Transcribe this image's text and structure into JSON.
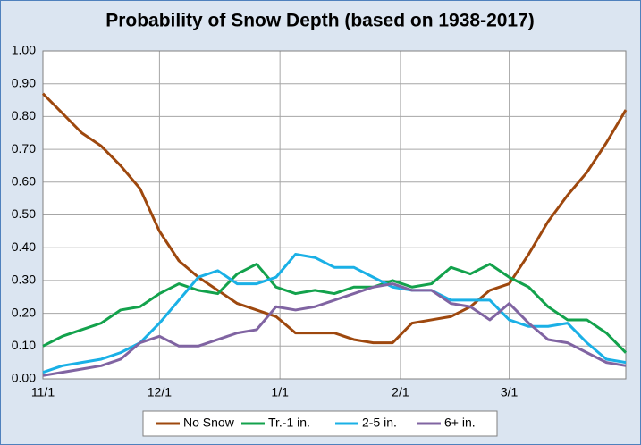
{
  "chart_data": {
    "type": "line",
    "title": "Probability of Snow Depth (based on 1938-2017)",
    "x": [
      0,
      5,
      10,
      15,
      20,
      25,
      30,
      35,
      40,
      45,
      50,
      55,
      60,
      65,
      70,
      75,
      80,
      85,
      90,
      95,
      100,
      105,
      110,
      115,
      120,
      125,
      130,
      135,
      140,
      145,
      150
    ],
    "xlim": [
      0,
      150
    ],
    "xticks": [
      {
        "value": 0,
        "label": "11/1"
      },
      {
        "value": 30,
        "label": "12/1"
      },
      {
        "value": 61,
        "label": "1/1"
      },
      {
        "value": 92,
        "label": "2/1"
      },
      {
        "value": 120,
        "label": "3/1"
      }
    ],
    "ylim": [
      0,
      1
    ],
    "yticks": [
      {
        "value": 0,
        "label": "0.00"
      },
      {
        "value": 0.1,
        "label": "0.10"
      },
      {
        "value": 0.2,
        "label": "0.20"
      },
      {
        "value": 0.3,
        "label": "0.30"
      },
      {
        "value": 0.4,
        "label": "0.40"
      },
      {
        "value": 0.5,
        "label": "0.50"
      },
      {
        "value": 0.6,
        "label": "0.60"
      },
      {
        "value": 0.7,
        "label": "0.70"
      },
      {
        "value": 0.8,
        "label": "0.80"
      },
      {
        "value": 0.9,
        "label": "0.90"
      },
      {
        "value": 1,
        "label": "1.00"
      }
    ],
    "grid": true,
    "legend": "bottom",
    "series": [
      {
        "name": "No Snow",
        "color": "#9e480e",
        "values": [
          0.87,
          0.81,
          0.75,
          0.71,
          0.65,
          0.58,
          0.45,
          0.36,
          0.31,
          0.27,
          0.23,
          0.21,
          0.19,
          0.14,
          0.14,
          0.14,
          0.12,
          0.11,
          0.11,
          0.17,
          0.18,
          0.19,
          0.22,
          0.27,
          0.29,
          0.38,
          0.48,
          0.56,
          0.63,
          0.72,
          0.82
        ]
      },
      {
        "name": "Tr.-1 in.",
        "color": "#13a24c",
        "values": [
          0.1,
          0.13,
          0.15,
          0.17,
          0.21,
          0.22,
          0.26,
          0.29,
          0.27,
          0.26,
          0.32,
          0.35,
          0.28,
          0.26,
          0.27,
          0.26,
          0.28,
          0.28,
          0.3,
          0.28,
          0.29,
          0.34,
          0.32,
          0.35,
          0.31,
          0.28,
          0.22,
          0.18,
          0.18,
          0.14,
          0.08
        ]
      },
      {
        "name": "2-5 in.",
        "color": "#1ab0e6",
        "values": [
          0.02,
          0.04,
          0.05,
          0.06,
          0.08,
          0.11,
          0.17,
          0.24,
          0.31,
          0.33,
          0.29,
          0.29,
          0.31,
          0.38,
          0.37,
          0.34,
          0.34,
          0.31,
          0.28,
          0.27,
          0.27,
          0.24,
          0.24,
          0.24,
          0.18,
          0.16,
          0.16,
          0.17,
          0.11,
          0.06,
          0.05
        ]
      },
      {
        "name": "6+ in.",
        "color": "#8064a2",
        "values": [
          0.01,
          0.02,
          0.03,
          0.04,
          0.06,
          0.11,
          0.13,
          0.1,
          0.1,
          0.12,
          0.14,
          0.15,
          0.22,
          0.21,
          0.22,
          0.24,
          0.26,
          0.28,
          0.29,
          0.27,
          0.27,
          0.23,
          0.22,
          0.18,
          0.23,
          0.17,
          0.12,
          0.11,
          0.08,
          0.05,
          0.04
        ]
      }
    ]
  }
}
